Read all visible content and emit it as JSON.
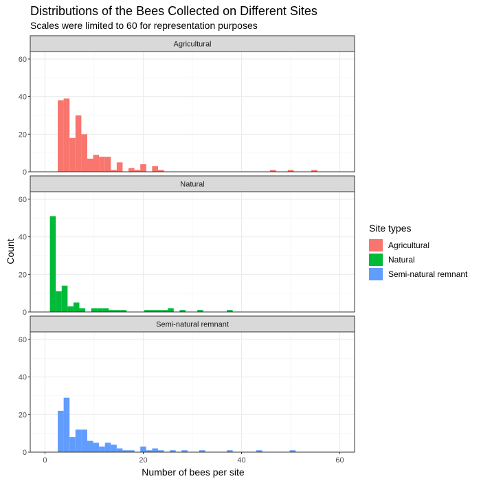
{
  "chart_data": {
    "type": "bar",
    "title": "Distributions of the Bees Collected on Different Sites",
    "subtitle": "Scales were limited to 60 for representation purposes",
    "xlabel": "Number of bees per site",
    "ylabel": "Count",
    "xlim": [
      -3,
      63
    ],
    "ylim": [
      0,
      64
    ],
    "x_ticks": [
      0,
      20,
      40,
      60
    ],
    "y_ticks": [
      0,
      20,
      40,
      60
    ],
    "bin_width": 1.2,
    "grid": true,
    "legend": {
      "title": "Site types",
      "position": "right",
      "entries": [
        {
          "label": "Agricultural",
          "color": "#F8766D"
        },
        {
          "label": "Natural",
          "color": "#00BA38"
        },
        {
          "label": "Semi-natural remnant",
          "color": "#619CFF"
        }
      ]
    },
    "panels": [
      {
        "strip": "Agricultural",
        "color": "#F8766D",
        "bins": [
          {
            "x": 3.2,
            "count": 38
          },
          {
            "x": 4.4,
            "count": 39
          },
          {
            "x": 5.6,
            "count": 18
          },
          {
            "x": 6.8,
            "count": 30
          },
          {
            "x": 8.0,
            "count": 20
          },
          {
            "x": 9.2,
            "count": 7
          },
          {
            "x": 10.4,
            "count": 9
          },
          {
            "x": 11.6,
            "count": 8
          },
          {
            "x": 12.8,
            "count": 8
          },
          {
            "x": 14.0,
            "count": 1
          },
          {
            "x": 15.2,
            "count": 5
          },
          {
            "x": 17.6,
            "count": 2
          },
          {
            "x": 18.8,
            "count": 1
          },
          {
            "x": 20.0,
            "count": 4
          },
          {
            "x": 22.4,
            "count": 3
          },
          {
            "x": 23.6,
            "count": 1
          },
          {
            "x": 46.4,
            "count": 1
          },
          {
            "x": 50.0,
            "count": 1
          },
          {
            "x": 54.8,
            "count": 1
          }
        ]
      },
      {
        "strip": "Natural",
        "color": "#00BA38",
        "bins": [
          {
            "x": 1.6,
            "count": 51
          },
          {
            "x": 2.8,
            "count": 11
          },
          {
            "x": 4.0,
            "count": 14
          },
          {
            "x": 5.2,
            "count": 3
          },
          {
            "x": 6.4,
            "count": 5
          },
          {
            "x": 7.6,
            "count": 2
          },
          {
            "x": 10.0,
            "count": 2
          },
          {
            "x": 11.2,
            "count": 2
          },
          {
            "x": 12.4,
            "count": 2
          },
          {
            "x": 13.6,
            "count": 1
          },
          {
            "x": 14.8,
            "count": 1
          },
          {
            "x": 16.0,
            "count": 1
          },
          {
            "x": 20.8,
            "count": 1
          },
          {
            "x": 22.0,
            "count": 1
          },
          {
            "x": 23.2,
            "count": 1
          },
          {
            "x": 24.4,
            "count": 1
          },
          {
            "x": 25.6,
            "count": 2
          },
          {
            "x": 28.0,
            "count": 1
          },
          {
            "x": 31.6,
            "count": 1
          },
          {
            "x": 37.6,
            "count": 1
          }
        ]
      },
      {
        "strip": "Semi-natural remnant",
        "color": "#619CFF",
        "bins": [
          {
            "x": 3.2,
            "count": 22
          },
          {
            "x": 4.4,
            "count": 29
          },
          {
            "x": 5.6,
            "count": 8
          },
          {
            "x": 6.8,
            "count": 12
          },
          {
            "x": 8.0,
            "count": 12
          },
          {
            "x": 9.2,
            "count": 6
          },
          {
            "x": 10.4,
            "count": 5
          },
          {
            "x": 11.6,
            "count": 3
          },
          {
            "x": 12.8,
            "count": 5
          },
          {
            "x": 14.0,
            "count": 4
          },
          {
            "x": 15.2,
            "count": 2
          },
          {
            "x": 16.4,
            "count": 1
          },
          {
            "x": 17.6,
            "count": 1
          },
          {
            "x": 20.0,
            "count": 3
          },
          {
            "x": 21.2,
            "count": 1
          },
          {
            "x": 22.4,
            "count": 2
          },
          {
            "x": 23.6,
            "count": 1
          },
          {
            "x": 26.0,
            "count": 1
          },
          {
            "x": 28.4,
            "count": 1
          },
          {
            "x": 32.0,
            "count": 1
          },
          {
            "x": 37.6,
            "count": 1
          },
          {
            "x": 43.6,
            "count": 1
          },
          {
            "x": 50.4,
            "count": 1
          }
        ]
      }
    ]
  }
}
